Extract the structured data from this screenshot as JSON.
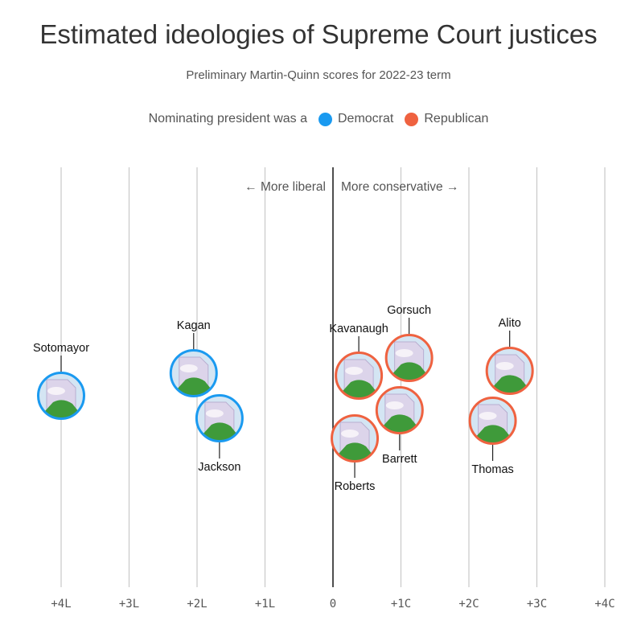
{
  "title": "Estimated ideologies of Supreme Court justices",
  "subtitle": "Preliminary Martin-Quinn scores for 2022-23 term",
  "legend": {
    "prefix": "Nominating president was a",
    "items": [
      {
        "label": "Democrat",
        "color": "#1a9af0"
      },
      {
        "label": "Republican",
        "color": "#ef6240"
      }
    ]
  },
  "chart_data": {
    "type": "scatter",
    "title": "Estimated ideologies of Supreme Court justices",
    "subtitle": "Preliminary Martin-Quinn scores for 2022-23 term",
    "xlabel": "",
    "ylabel": "",
    "xlim": [
      -4,
      4
    ],
    "ticks": [
      {
        "value": -4,
        "label": "+4L"
      },
      {
        "value": -3,
        "label": "+3L"
      },
      {
        "value": -2,
        "label": "+2L"
      },
      {
        "value": -1,
        "label": "+1L"
      },
      {
        "value": 0,
        "label": "0"
      },
      {
        "value": 1,
        "label": "+1C"
      },
      {
        "value": 2,
        "label": "+2C"
      },
      {
        "value": 3,
        "label": "+3C"
      },
      {
        "value": 4,
        "label": "+4C"
      }
    ],
    "direction_labels": {
      "left": "← More liberal",
      "right": "More conservative →"
    },
    "party_colors": {
      "Democrat": "#1a9af0",
      "Republican": "#ef6240"
    },
    "points": [
      {
        "name": "Sotomayor",
        "score": -4.0,
        "party": "Democrat",
        "label_side": "above"
      },
      {
        "name": "Kagan",
        "score": -2.05,
        "party": "Democrat",
        "label_side": "above"
      },
      {
        "name": "Jackson",
        "score": -1.67,
        "party": "Democrat",
        "label_side": "below"
      },
      {
        "name": "Kavanaugh",
        "score": 0.38,
        "party": "Republican",
        "label_side": "above"
      },
      {
        "name": "Roberts",
        "score": 0.32,
        "party": "Republican",
        "label_side": "below"
      },
      {
        "name": "Gorsuch",
        "score": 1.12,
        "party": "Republican",
        "label_side": "above"
      },
      {
        "name": "Barrett",
        "score": 0.98,
        "party": "Republican",
        "label_side": "below"
      },
      {
        "name": "Alito",
        "score": 2.6,
        "party": "Republican",
        "label_side": "above"
      },
      {
        "name": "Thomas",
        "score": 2.35,
        "party": "Republican",
        "label_side": "below"
      }
    ]
  }
}
